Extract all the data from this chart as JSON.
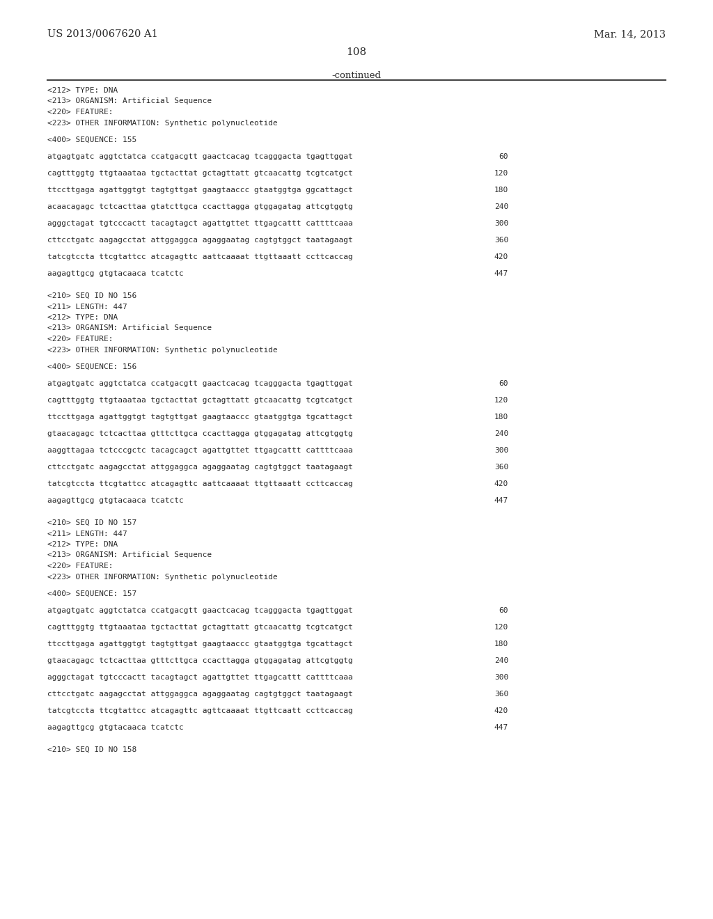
{
  "background_color": "#ffffff",
  "header_left": "US 2013/0067620 A1",
  "header_right": "Mar. 14, 2013",
  "page_number": "108",
  "continued_text": "-continued",
  "content": [
    {
      "type": "meta",
      "text": "<212> TYPE: DNA"
    },
    {
      "type": "meta",
      "text": "<213> ORGANISM: Artificial Sequence"
    },
    {
      "type": "meta",
      "text": "<220> FEATURE:"
    },
    {
      "type": "meta",
      "text": "<223> OTHER INFORMATION: Synthetic polynucleotide"
    },
    {
      "type": "blank"
    },
    {
      "type": "seq_label",
      "text": "<400> SEQUENCE: 155"
    },
    {
      "type": "blank"
    },
    {
      "type": "seq_line",
      "sequence": "atgagtgatc aggtctatca ccatgacgtt gaactcacag tcagggacta tgagttggat",
      "num": "60"
    },
    {
      "type": "blank"
    },
    {
      "type": "seq_line",
      "sequence": "cagtttggtg ttgtaaataa tgctacttat gctagttatt gtcaacattg tcgtcatgct",
      "num": "120"
    },
    {
      "type": "blank"
    },
    {
      "type": "seq_line",
      "sequence": "ttccttgaga agattggtgt tagtgttgat gaagtaaccc gtaatggtga ggcattagct",
      "num": "180"
    },
    {
      "type": "blank"
    },
    {
      "type": "seq_line",
      "sequence": "acaacagagc tctcacttaa gtatcttgca ccacttagga gtggagatag attcgtggtg",
      "num": "240"
    },
    {
      "type": "blank"
    },
    {
      "type": "seq_line",
      "sequence": "agggctagat tgtcccactt tacagtagct agattgttet ttgagcattt cattttcaaa",
      "num": "300"
    },
    {
      "type": "blank"
    },
    {
      "type": "seq_line",
      "sequence": "cttcctgatc aagagcctat attggaggca agaggaatag cagtgtggct taatagaagt",
      "num": "360"
    },
    {
      "type": "blank"
    },
    {
      "type": "seq_line",
      "sequence": "tatcgtccta ttcgtattcc atcagagttc aattcaaaat ttgttaaatt ccttcaccag",
      "num": "420"
    },
    {
      "type": "blank"
    },
    {
      "type": "seq_line",
      "sequence": "aagagttgcg gtgtacaaca tcatctc",
      "num": "447"
    },
    {
      "type": "blank"
    },
    {
      "type": "blank"
    },
    {
      "type": "meta",
      "text": "<210> SEQ ID NO 156"
    },
    {
      "type": "meta",
      "text": "<211> LENGTH: 447"
    },
    {
      "type": "meta",
      "text": "<212> TYPE: DNA"
    },
    {
      "type": "meta",
      "text": "<213> ORGANISM: Artificial Sequence"
    },
    {
      "type": "meta",
      "text": "<220> FEATURE:"
    },
    {
      "type": "meta",
      "text": "<223> OTHER INFORMATION: Synthetic polynucleotide"
    },
    {
      "type": "blank"
    },
    {
      "type": "seq_label",
      "text": "<400> SEQUENCE: 156"
    },
    {
      "type": "blank"
    },
    {
      "type": "seq_line",
      "sequence": "atgagtgatc aggtctatca ccatgacgtt gaactcacag tcagggacta tgagttggat",
      "num": "60"
    },
    {
      "type": "blank"
    },
    {
      "type": "seq_line",
      "sequence": "cagtttggtg ttgtaaataa tgctacttat gctagttatt gtcaacattg tcgtcatgct",
      "num": "120"
    },
    {
      "type": "blank"
    },
    {
      "type": "seq_line",
      "sequence": "ttccttgaga agattggtgt tagtgttgat gaagtaaccc gtaatggtga tgcattagct",
      "num": "180"
    },
    {
      "type": "blank"
    },
    {
      "type": "seq_line",
      "sequence": "gtaacagagc tctcacttaa gtttcttgca ccacttagga gtggagatag attcgtggtg",
      "num": "240"
    },
    {
      "type": "blank"
    },
    {
      "type": "seq_line",
      "sequence": "aaggttagaa tctcccgctc tacagcagct agattgttet ttgagcattt cattttcaaa",
      "num": "300"
    },
    {
      "type": "blank"
    },
    {
      "type": "seq_line",
      "sequence": "cttcctgatc aagagcctat attggaggca agaggaatag cagtgtggct taatagaagt",
      "num": "360"
    },
    {
      "type": "blank"
    },
    {
      "type": "seq_line",
      "sequence": "tatcgtccta ttcgtattcc atcagagttc aattcaaaat ttgttaaatt ccttcaccag",
      "num": "420"
    },
    {
      "type": "blank"
    },
    {
      "type": "seq_line",
      "sequence": "aagagttgcg gtgtacaaca tcatctc",
      "num": "447"
    },
    {
      "type": "blank"
    },
    {
      "type": "blank"
    },
    {
      "type": "meta",
      "text": "<210> SEQ ID NO 157"
    },
    {
      "type": "meta",
      "text": "<211> LENGTH: 447"
    },
    {
      "type": "meta",
      "text": "<212> TYPE: DNA"
    },
    {
      "type": "meta",
      "text": "<213> ORGANISM: Artificial Sequence"
    },
    {
      "type": "meta",
      "text": "<220> FEATURE:"
    },
    {
      "type": "meta",
      "text": "<223> OTHER INFORMATION: Synthetic polynucleotide"
    },
    {
      "type": "blank"
    },
    {
      "type": "seq_label",
      "text": "<400> SEQUENCE: 157"
    },
    {
      "type": "blank"
    },
    {
      "type": "seq_line",
      "sequence": "atgagtgatc aggtctatca ccatgacgtt gaactcacag tcagggacta tgagttggat",
      "num": "60"
    },
    {
      "type": "blank"
    },
    {
      "type": "seq_line",
      "sequence": "cagtttggtg ttgtaaataa tgctacttat gctagttatt gtcaacattg tcgtcatgct",
      "num": "120"
    },
    {
      "type": "blank"
    },
    {
      "type": "seq_line",
      "sequence": "ttccttgaga agattggtgt tagtgttgat gaagtaaccc gtaatggtga tgcattagct",
      "num": "180"
    },
    {
      "type": "blank"
    },
    {
      "type": "seq_line",
      "sequence": "gtaacagagc tctcacttaa gtttcttgca ccacttagga gtggagatag attcgtggtg",
      "num": "240"
    },
    {
      "type": "blank"
    },
    {
      "type": "seq_line",
      "sequence": "agggctagat tgtcccactt tacagtagct agattgttet ttgagcattt cattttcaaa",
      "num": "300"
    },
    {
      "type": "blank"
    },
    {
      "type": "seq_line",
      "sequence": "cttcctgatc aagagcctat attggaggca agaggaatag cagtgtggct taatagaagt",
      "num": "360"
    },
    {
      "type": "blank"
    },
    {
      "type": "seq_line",
      "sequence": "tatcgtccta ttcgtattcc atcagagttc agttcaaaat ttgttcaatt ccttcaccag",
      "num": "420"
    },
    {
      "type": "blank"
    },
    {
      "type": "seq_line",
      "sequence": "aagagttgcg gtgtacaaca tcatctc",
      "num": "447"
    },
    {
      "type": "blank"
    },
    {
      "type": "blank"
    },
    {
      "type": "meta",
      "text": "<210> SEQ ID NO 158"
    }
  ]
}
